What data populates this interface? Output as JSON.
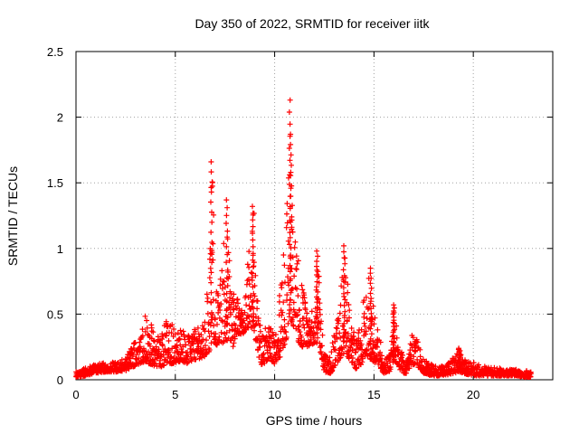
{
  "chart_data": {
    "type": "scatter",
    "title": "Day 350 of 2022, SRMTID for receiver iitk",
    "xlabel": "GPS time / hours",
    "ylabel": "SRMTID / TECUs",
    "xlim": [
      0,
      24
    ],
    "ylim": [
      0,
      2.5
    ],
    "x_ticks": [
      0,
      5,
      10,
      15,
      20
    ],
    "x_tick_labels": [
      "0",
      "5",
      "10",
      "15",
      "20"
    ],
    "y_ticks": [
      0,
      0.5,
      1,
      1.5,
      2,
      2.5
    ],
    "y_tick_labels": [
      "0",
      "0.5",
      "1",
      "1.5",
      "2",
      "2.5"
    ],
    "grid": true,
    "marker": "+",
    "colors": {
      "series": "#ff0000",
      "grid": "#a0a0a0",
      "axis": "#000000"
    },
    "series": [
      {
        "name": "SRMTID",
        "envelope": {
          "description": "approximate upper/lower envelope of the point cloud (hours, TECU)",
          "x": [
            0.0,
            0.5,
            1.0,
            1.5,
            2.0,
            2.5,
            2.9,
            3.2,
            3.5,
            3.7,
            4.0,
            4.3,
            4.6,
            4.8,
            5.0,
            5.3,
            5.6,
            5.9,
            6.2,
            6.5,
            6.7,
            6.85,
            7.0,
            7.2,
            7.5,
            7.7,
            7.9,
            8.1,
            8.4,
            8.7,
            8.95,
            9.2,
            9.4,
            9.7,
            10.0,
            10.3,
            10.6,
            10.75,
            10.9,
            11.1,
            11.4,
            11.7,
            12.0,
            12.2,
            12.5,
            12.8,
            13.2,
            13.5,
            13.8,
            14.1,
            14.4,
            14.7,
            14.9,
            15.2,
            15.5,
            15.8,
            16.0,
            16.3,
            16.6,
            16.9,
            17.2,
            17.5,
            17.9,
            18.3,
            18.8,
            19.3,
            19.7,
            20.2,
            20.7,
            21.2,
            21.7,
            22.2,
            22.6,
            22.9
          ],
          "upper": [
            0.06,
            0.09,
            0.12,
            0.13,
            0.14,
            0.16,
            0.3,
            0.42,
            0.5,
            0.45,
            0.35,
            0.38,
            0.48,
            0.45,
            0.38,
            0.4,
            0.33,
            0.38,
            0.4,
            0.45,
            1.1,
            1.66,
            0.9,
            0.62,
            1.38,
            1.0,
            0.68,
            0.62,
            0.55,
            0.98,
            1.32,
            0.48,
            0.35,
            0.45,
            0.32,
            0.72,
            1.4,
            1.86,
            1.3,
            1.0,
            0.75,
            0.45,
            0.58,
            0.98,
            0.2,
            0.18,
            0.52,
            1.02,
            0.55,
            0.28,
            0.52,
            0.85,
            0.6,
            0.42,
            0.15,
            0.2,
            0.56,
            0.25,
            0.12,
            0.35,
            0.3,
            0.15,
            0.12,
            0.1,
            0.14,
            0.24,
            0.15,
            0.12,
            0.1,
            0.09,
            0.08,
            0.08,
            0.07,
            0.06
          ],
          "lower": [
            0.02,
            0.03,
            0.05,
            0.06,
            0.06,
            0.07,
            0.1,
            0.12,
            0.14,
            0.12,
            0.1,
            0.1,
            0.12,
            0.12,
            0.13,
            0.14,
            0.12,
            0.15,
            0.16,
            0.18,
            0.2,
            0.3,
            0.28,
            0.24,
            0.3,
            0.3,
            0.25,
            0.35,
            0.35,
            0.4,
            0.4,
            0.15,
            0.1,
            0.16,
            0.12,
            0.18,
            0.3,
            0.5,
            0.4,
            0.3,
            0.25,
            0.25,
            0.28,
            0.28,
            0.06,
            0.05,
            0.12,
            0.2,
            0.15,
            0.08,
            0.12,
            0.18,
            0.15,
            0.1,
            0.05,
            0.06,
            0.15,
            0.08,
            0.04,
            0.12,
            0.1,
            0.05,
            0.03,
            0.03,
            0.04,
            0.06,
            0.04,
            0.03,
            0.03,
            0.03,
            0.03,
            0.03,
            0.02,
            0.02
          ]
        },
        "peaks": [
          {
            "x": 6.82,
            "y": 1.66
          },
          {
            "x": 7.6,
            "y": 1.37
          },
          {
            "x": 8.9,
            "y": 1.32
          },
          {
            "x": 10.78,
            "y": 2.13
          },
          {
            "x": 10.82,
            "y": 1.87
          },
          {
            "x": 12.15,
            "y": 0.98
          },
          {
            "x": 13.5,
            "y": 1.02
          },
          {
            "x": 14.85,
            "y": 0.85
          },
          {
            "x": 16.0,
            "y": 0.57
          },
          {
            "x": 19.3,
            "y": 0.24
          }
        ],
        "x_range": [
          0,
          22.9
        ],
        "sample_step_hours": 0.017
      }
    ]
  }
}
